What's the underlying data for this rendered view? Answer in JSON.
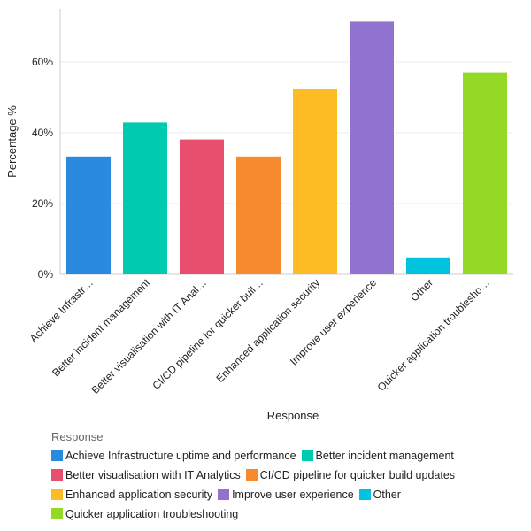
{
  "chart_data": {
    "type": "bar",
    "categories": [
      "Achieve Infrastructure uptime and performance",
      "Better incident management",
      "Better visualisation with IT Analytics",
      "CI/CD pipeline for quicker build updates",
      "Enhanced application security",
      "Improve user experience",
      "Other",
      "Quicker application troubleshooting"
    ],
    "tick_labels": [
      "Achieve Infrastr…",
      "Better incident management",
      "Better visualisation with IT Anal…",
      "CI/CD pipeline for quicker buil…",
      "Enhanced application security",
      "Improve user experience",
      "Other",
      "Quicker application troublesho…"
    ],
    "values": [
      33.3,
      42.9,
      38.1,
      33.3,
      52.4,
      71.4,
      4.8,
      57.1
    ],
    "colors": [
      "#2a8ae0",
      "#00cbb0",
      "#e84e6e",
      "#f88a2e",
      "#fdbb24",
      "#9272d0",
      "#00c4df",
      "#93d926"
    ],
    "xlabel": "Response",
    "ylabel": "Percentage %",
    "ylim": [
      0,
      75
    ],
    "yticks": [
      0,
      20,
      40,
      60
    ],
    "ytick_labels": [
      "0%",
      "20%",
      "40%",
      "60%"
    ],
    "grid": true,
    "legend_title": "Response",
    "legend_position": "bottom"
  }
}
